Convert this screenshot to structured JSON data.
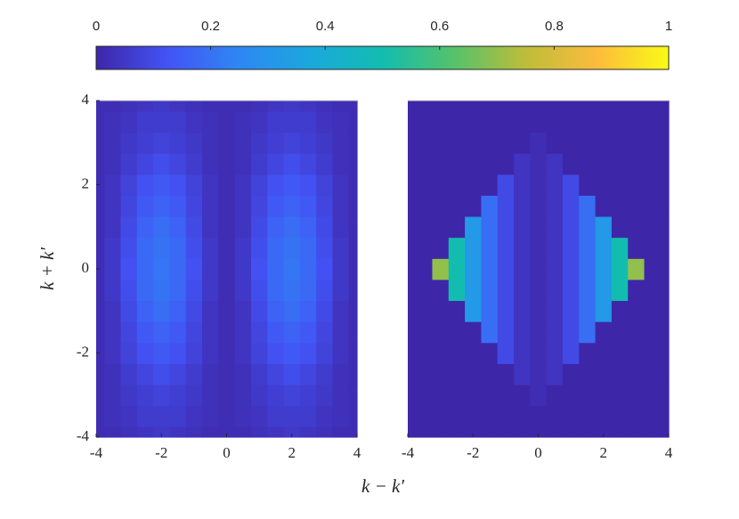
{
  "chart_data": [
    {
      "type": "heatmap",
      "ylabel": "k + k′",
      "xlabel": "k − k′",
      "colorbar": {
        "lim": [
          0,
          1
        ],
        "ticks": [
          0,
          0.2,
          0.4,
          0.6,
          0.8,
          1
        ],
        "colors": [
          "#3e26a8",
          "#4353f5",
          "#2e87f4",
          "#1ba8dc",
          "#12bdb0",
          "#55c26a",
          "#bdbd3a",
          "#fdbb3c",
          "#f9fb15"
        ]
      },
      "xlim": [
        -4,
        4
      ],
      "ylim": [
        -4,
        4
      ],
      "xticks": [
        -4,
        -2,
        0,
        2,
        4
      ],
      "yticks": [
        -4,
        -2,
        0,
        2,
        4
      ],
      "x": [
        -4,
        -3.5,
        -3,
        -2.5,
        -2,
        -1.5,
        -1,
        -0.5,
        0,
        0.5,
        1,
        1.5,
        2,
        2.5,
        3,
        3.5,
        4
      ],
      "y": [
        -4,
        -3.5,
        -3,
        -2.5,
        -2,
        -1.5,
        -1,
        -0.5,
        0,
        0.5,
        1,
        1.5,
        2,
        2.5,
        3,
        3.5,
        4
      ],
      "z": [
        [
          0.02,
          0.02,
          0.03,
          0.04,
          0.05,
          0.04,
          0.03,
          0.02,
          0.02,
          0.02,
          0.03,
          0.04,
          0.05,
          0.04,
          0.03,
          0.02,
          0.02
        ],
        [
          0.02,
          0.03,
          0.04,
          0.06,
          0.06,
          0.06,
          0.04,
          0.03,
          0.02,
          0.03,
          0.04,
          0.06,
          0.06,
          0.06,
          0.04,
          0.03,
          0.02
        ],
        [
          0.02,
          0.03,
          0.05,
          0.07,
          0.08,
          0.07,
          0.05,
          0.03,
          0.02,
          0.03,
          0.05,
          0.07,
          0.08,
          0.07,
          0.05,
          0.03,
          0.02
        ],
        [
          0.02,
          0.03,
          0.06,
          0.09,
          0.11,
          0.09,
          0.06,
          0.03,
          0.02,
          0.03,
          0.06,
          0.09,
          0.11,
          0.09,
          0.06,
          0.03,
          0.02
        ],
        [
          0.02,
          0.04,
          0.08,
          0.12,
          0.14,
          0.12,
          0.08,
          0.04,
          0.02,
          0.04,
          0.08,
          0.12,
          0.14,
          0.12,
          0.08,
          0.04,
          0.02
        ],
        [
          0.02,
          0.04,
          0.09,
          0.14,
          0.16,
          0.14,
          0.09,
          0.04,
          0.02,
          0.04,
          0.09,
          0.14,
          0.16,
          0.14,
          0.09,
          0.04,
          0.02
        ],
        [
          0.02,
          0.04,
          0.1,
          0.16,
          0.19,
          0.16,
          0.1,
          0.04,
          0.02,
          0.04,
          0.1,
          0.16,
          0.19,
          0.16,
          0.1,
          0.04,
          0.02
        ],
        [
          0.02,
          0.05,
          0.11,
          0.18,
          0.2,
          0.18,
          0.11,
          0.05,
          0.02,
          0.05,
          0.11,
          0.18,
          0.2,
          0.18,
          0.11,
          0.05,
          0.02
        ],
        [
          0.02,
          0.05,
          0.12,
          0.18,
          0.21,
          0.18,
          0.12,
          0.05,
          0.02,
          0.05,
          0.12,
          0.18,
          0.21,
          0.18,
          0.12,
          0.05,
          0.02
        ],
        [
          0.02,
          0.05,
          0.11,
          0.18,
          0.2,
          0.18,
          0.11,
          0.05,
          0.02,
          0.05,
          0.11,
          0.18,
          0.2,
          0.18,
          0.11,
          0.05,
          0.02
        ],
        [
          0.02,
          0.04,
          0.1,
          0.16,
          0.19,
          0.16,
          0.1,
          0.04,
          0.02,
          0.04,
          0.1,
          0.16,
          0.19,
          0.16,
          0.1,
          0.04,
          0.02
        ],
        [
          0.02,
          0.04,
          0.09,
          0.14,
          0.16,
          0.14,
          0.09,
          0.04,
          0.02,
          0.04,
          0.09,
          0.14,
          0.16,
          0.14,
          0.09,
          0.04,
          0.02
        ],
        [
          0.02,
          0.04,
          0.08,
          0.12,
          0.14,
          0.12,
          0.08,
          0.04,
          0.02,
          0.04,
          0.08,
          0.12,
          0.14,
          0.12,
          0.08,
          0.04,
          0.02
        ],
        [
          0.02,
          0.03,
          0.06,
          0.09,
          0.11,
          0.09,
          0.06,
          0.03,
          0.02,
          0.03,
          0.06,
          0.09,
          0.11,
          0.09,
          0.06,
          0.03,
          0.02
        ],
        [
          0.02,
          0.03,
          0.05,
          0.07,
          0.08,
          0.07,
          0.05,
          0.03,
          0.02,
          0.03,
          0.05,
          0.07,
          0.08,
          0.07,
          0.05,
          0.03,
          0.02
        ],
        [
          0.02,
          0.03,
          0.04,
          0.06,
          0.06,
          0.06,
          0.04,
          0.03,
          0.02,
          0.03,
          0.04,
          0.06,
          0.06,
          0.06,
          0.04,
          0.03,
          0.02
        ],
        [
          0.02,
          0.02,
          0.03,
          0.04,
          0.05,
          0.04,
          0.03,
          0.02,
          0.02,
          0.02,
          0.03,
          0.04,
          0.05,
          0.04,
          0.03,
          0.02,
          0.02
        ]
      ]
    },
    {
      "type": "heatmap",
      "xlim": [
        -4,
        4
      ],
      "ylim": [
        -4,
        4
      ],
      "xticks": [
        -4,
        -2,
        0,
        2,
        4
      ],
      "x": [
        -4,
        -3.5,
        -3,
        -2.5,
        -2,
        -1.5,
        -1,
        -0.5,
        0,
        0.5,
        1,
        1.5,
        2,
        2.5,
        3,
        3.5,
        4
      ],
      "y": [
        -4,
        -3.5,
        -3,
        -2.5,
        -2,
        -1.5,
        -1,
        -0.5,
        0,
        0.5,
        1,
        1.5,
        2,
        2.5,
        3,
        3.5,
        4
      ],
      "z": [
        [
          0,
          0,
          0,
          0,
          0,
          0,
          0,
          0,
          0,
          0,
          0,
          0,
          0,
          0,
          0,
          0,
          0
        ],
        [
          0,
          0,
          0,
          0,
          0,
          0,
          0,
          0,
          0,
          0,
          0,
          0,
          0,
          0,
          0,
          0,
          0
        ],
        [
          0,
          0,
          0,
          0,
          0,
          0,
          0,
          0,
          0.02,
          0,
          0,
          0,
          0,
          0,
          0,
          0,
          0
        ],
        [
          0,
          0,
          0,
          0,
          0,
          0,
          0,
          0.04,
          0.02,
          0.04,
          0,
          0,
          0,
          0,
          0,
          0,
          0
        ],
        [
          0,
          0,
          0,
          0,
          0,
          0,
          0.1,
          0.04,
          0.02,
          0.04,
          0.1,
          0,
          0,
          0,
          0,
          0,
          0
        ],
        [
          0,
          0,
          0,
          0,
          0,
          0.19,
          0.1,
          0.04,
          0.02,
          0.04,
          0.1,
          0.19,
          0,
          0,
          0,
          0,
          0
        ],
        [
          0,
          0,
          0,
          0,
          0.32,
          0.19,
          0.1,
          0.04,
          0.02,
          0.04,
          0.1,
          0.19,
          0.32,
          0,
          0,
          0,
          0
        ],
        [
          0,
          0,
          0,
          0.5,
          0.32,
          0.19,
          0.1,
          0.04,
          0.02,
          0.04,
          0.1,
          0.19,
          0.32,
          0.5,
          0,
          0,
          0
        ],
        [
          0,
          0,
          0.7,
          0.5,
          0.32,
          0.19,
          0.1,
          0.04,
          0.02,
          0.04,
          0.1,
          0.19,
          0.32,
          0.5,
          0.7,
          0,
          0
        ],
        [
          0,
          0,
          0,
          0.5,
          0.32,
          0.19,
          0.1,
          0.04,
          0.02,
          0.04,
          0.1,
          0.19,
          0.32,
          0.5,
          0,
          0,
          0
        ],
        [
          0,
          0,
          0,
          0,
          0.32,
          0.19,
          0.1,
          0.04,
          0.02,
          0.04,
          0.1,
          0.19,
          0.32,
          0,
          0,
          0,
          0
        ],
        [
          0,
          0,
          0,
          0,
          0,
          0.19,
          0.1,
          0.04,
          0.02,
          0.04,
          0.1,
          0.19,
          0,
          0,
          0,
          0,
          0
        ],
        [
          0,
          0,
          0,
          0,
          0,
          0,
          0.1,
          0.04,
          0.02,
          0.04,
          0.1,
          0,
          0,
          0,
          0,
          0,
          0
        ],
        [
          0,
          0,
          0,
          0,
          0,
          0,
          0,
          0.04,
          0.02,
          0.04,
          0,
          0,
          0,
          0,
          0,
          0,
          0
        ],
        [
          0,
          0,
          0,
          0,
          0,
          0,
          0,
          0,
          0.02,
          0,
          0,
          0,
          0,
          0,
          0,
          0,
          0
        ],
        [
          0,
          0,
          0,
          0,
          0,
          0,
          0,
          0,
          0,
          0,
          0,
          0,
          0,
          0,
          0,
          0,
          0
        ],
        [
          0,
          0,
          0,
          0,
          0,
          0,
          0,
          0,
          0,
          0,
          0,
          0,
          0,
          0,
          0,
          0,
          0
        ]
      ]
    }
  ]
}
